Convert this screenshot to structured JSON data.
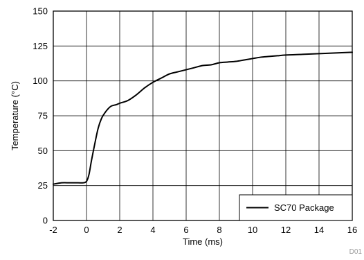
{
  "chart_data": {
    "type": "line",
    "title": "",
    "xlabel": "Time (ms)",
    "ylabel": "Temperature (°C)",
    "xlim": [
      -2,
      16
    ],
    "ylim": [
      0,
      150
    ],
    "x_ticks": [
      -2,
      0,
      2,
      4,
      6,
      8,
      10,
      12,
      14,
      16
    ],
    "y_ticks": [
      0,
      25,
      50,
      75,
      100,
      125,
      150
    ],
    "x_tick_labels": [
      "-2",
      "0",
      "2",
      "4",
      "6",
      "8",
      "10",
      "12",
      "14",
      "16"
    ],
    "y_tick_labels": [
      "0",
      "25",
      "50",
      "75",
      "100",
      "125",
      "150"
    ],
    "grid": true,
    "legend_position": "bottom-right",
    "series": [
      {
        "name": "SC70 Package",
        "color": "#000000",
        "x": [
          -2,
          -1.5,
          -1,
          -0.5,
          -0.2,
          0,
          0.15,
          0.3,
          0.5,
          0.7,
          0.9,
          1.1,
          1.3,
          1.5,
          1.8,
          2,
          2.5,
          3,
          3.5,
          4,
          4.5,
          5,
          5.5,
          6,
          6.5,
          7,
          7.5,
          8,
          8.5,
          9,
          9.5,
          10,
          10.5,
          11,
          11.5,
          12,
          13,
          14,
          15,
          16
        ],
        "y": [
          26,
          27,
          27,
          27,
          27,
          28,
          33,
          43,
          55,
          66,
          73,
          77,
          80,
          82,
          83,
          84,
          86,
          90,
          95,
          99,
          102,
          105,
          106.5,
          108,
          109.5,
          111,
          111.5,
          113,
          113.5,
          114,
          115,
          116,
          117,
          117.5,
          118,
          118.5,
          119,
          119.5,
          120,
          120.5
        ]
      }
    ],
    "legend": [
      "SC70 Package"
    ],
    "figure_id": "D01"
  }
}
